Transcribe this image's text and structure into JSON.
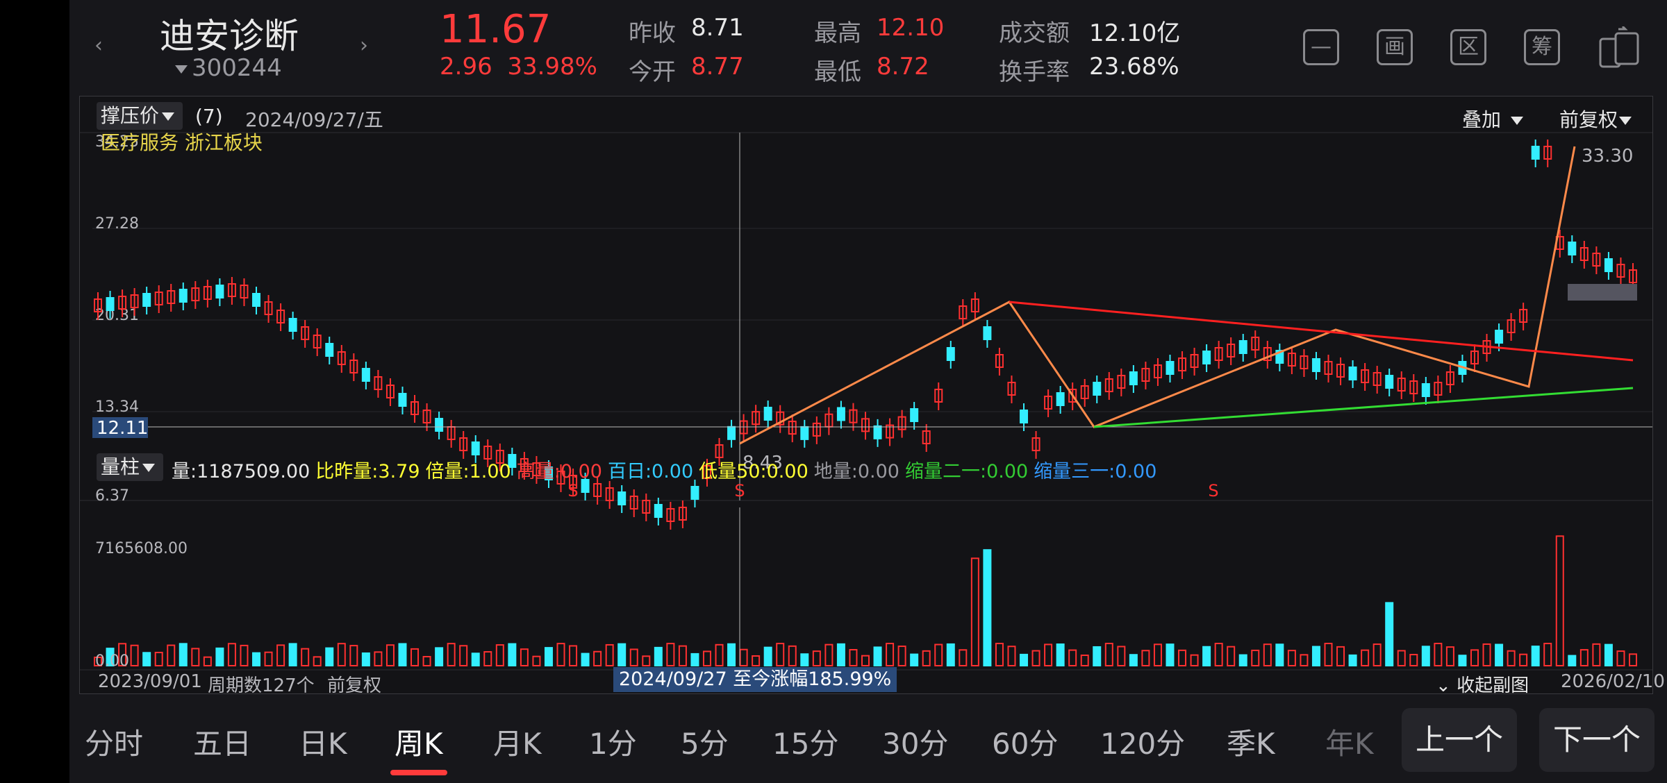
{
  "header": {
    "stock_name": "迪安诊断",
    "stock_code": "300244",
    "price": "11.67",
    "change": "2.96",
    "change_pct": "33.98%",
    "stats": {
      "prev_close_label": "昨收",
      "prev_close": "8.71",
      "open_label": "今开",
      "open": "8.77",
      "high_label": "最高",
      "high": "12.10",
      "low_label": "最低",
      "low": "8.72",
      "amount_label": "成交额",
      "amount": "12.10亿",
      "turnover_label": "换手率",
      "turnover": "23.68%"
    },
    "tool_icons": [
      "minus-icon",
      "draw-icon",
      "range-icon",
      "chip-icon",
      "switch-device-icon"
    ],
    "tool_labels": [
      "—",
      "画",
      "区",
      "筹"
    ]
  },
  "chart": {
    "indicator_label": "撑压价",
    "indicator_count": "(7)",
    "date": "2024/09/27/五",
    "overlay_label": "叠加",
    "adjust_label": "前复权",
    "sector_tags": "医疗服务 浙江板块",
    "y_axis_labels": [
      "27.28",
      "20.31",
      "13.34",
      "6.37"
    ],
    "y_axis_top_partial": "34.25",
    "cursor_price": "12.11",
    "high_marker": "33.30",
    "low_marker": "8.43",
    "s_marker": "S",
    "line_colors": {
      "arrows": "#ff8a4a",
      "resistance": "#ff2020",
      "support": "#33dd33"
    }
  },
  "volume": {
    "type_label": "量柱",
    "stats": [
      {
        "text": "量:1187509.00",
        "color": "#e8e8e8"
      },
      {
        "text": "比昨量:3.79",
        "color": "#ffff33"
      },
      {
        "text": "倍量:1.00",
        "color": "#ffff33"
      },
      {
        "text": "高量:0.00",
        "color": "#ff3b3b"
      },
      {
        "text": "百日:0.00",
        "color": "#33ccff"
      },
      {
        "text": "低量50:0.00",
        "color": "#ffff33"
      },
      {
        "text": "地量:0.00",
        "color": "#9a9aa0"
      },
      {
        "text": "缩量二一:0.00",
        "color": "#33cc33"
      },
      {
        "text": "缩量三一:0.00",
        "color": "#3399ff"
      }
    ],
    "max_label": "7165608.00",
    "zero_label": "0.00"
  },
  "footer": {
    "start_date": "2023/09/01",
    "period_count": "周期数127个",
    "adjust": "前复权",
    "range_text": "2024/09/27 至今涨幅185.99%",
    "collapse_label": "收起副图",
    "end_date": "2026/02/10"
  },
  "tabs": [
    "分时",
    "五日",
    "日K",
    "周K",
    "月K",
    "1分",
    "5分",
    "15分",
    "30分",
    "60分",
    "120分",
    "季K",
    "年K"
  ],
  "active_tab": "周K",
  "nav": {
    "prev": "上一个",
    "next": "下一个"
  }
}
